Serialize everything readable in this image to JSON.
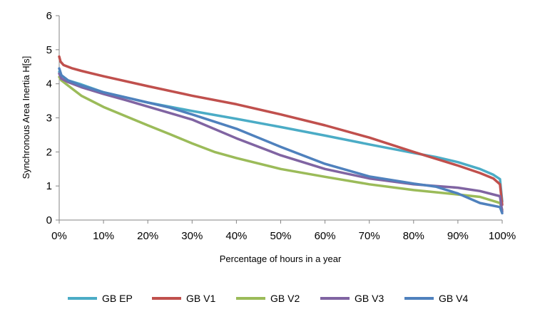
{
  "chart_data": {
    "type": "line",
    "title": "",
    "xlabel": "Percentage of hours  in a year",
    "ylabel": "Synchronous Area Inertia H[s]",
    "xlim": [
      0,
      100
    ],
    "ylim": [
      0,
      6
    ],
    "x_ticks": [
      0,
      10,
      20,
      30,
      40,
      50,
      60,
      70,
      80,
      90,
      100
    ],
    "x_tick_labels": [
      "0%",
      "10%",
      "20%",
      "30%",
      "40%",
      "50%",
      "60%",
      "70%",
      "80%",
      "90%",
      "100%"
    ],
    "y_ticks": [
      0,
      1,
      2,
      3,
      4,
      5,
      6
    ],
    "y_tick_labels": [
      "0",
      "1",
      "2",
      "3",
      "4",
      "5",
      "6"
    ],
    "grid": false,
    "legend_position": "bottom",
    "series": [
      {
        "name": "GB EP",
        "color": "#4BACC6",
        "x": [
          0,
          0.5,
          2,
          5,
          10,
          20,
          30,
          40,
          50,
          60,
          70,
          80,
          85,
          90,
          95,
          98,
          99.5,
          100
        ],
        "y": [
          4.35,
          4.25,
          4.1,
          3.98,
          3.75,
          3.45,
          3.2,
          2.97,
          2.73,
          2.48,
          2.22,
          1.97,
          1.85,
          1.7,
          1.5,
          1.33,
          1.2,
          0.55
        ]
      },
      {
        "name": "GB V1",
        "color": "#C0504D",
        "x": [
          0,
          0.3,
          1,
          3,
          5,
          10,
          20,
          30,
          40,
          50,
          60,
          70,
          80,
          90,
          95,
          98,
          99.5,
          100
        ],
        "y": [
          4.8,
          4.65,
          4.55,
          4.45,
          4.38,
          4.22,
          3.93,
          3.65,
          3.4,
          3.1,
          2.78,
          2.42,
          2.0,
          1.6,
          1.38,
          1.22,
          1.05,
          0.45
        ]
      },
      {
        "name": "GB V2",
        "color": "#9BBB59",
        "x": [
          0,
          0.5,
          2,
          5,
          10,
          15,
          20,
          25,
          30,
          35,
          40,
          50,
          60,
          70,
          80,
          90,
          95,
          99.5,
          100
        ],
        "y": [
          4.2,
          4.1,
          3.95,
          3.65,
          3.32,
          3.05,
          2.78,
          2.52,
          2.25,
          2.0,
          1.82,
          1.5,
          1.27,
          1.05,
          0.88,
          0.75,
          0.68,
          0.5,
          0.3
        ]
      },
      {
        "name": "GB V3",
        "color": "#8064A2",
        "x": [
          0,
          0.5,
          2,
          5,
          10,
          15,
          20,
          30,
          40,
          50,
          60,
          70,
          80,
          85,
          90,
          95,
          99.5,
          100
        ],
        "y": [
          4.3,
          4.15,
          4.05,
          3.9,
          3.7,
          3.52,
          3.33,
          2.95,
          2.4,
          1.9,
          1.5,
          1.22,
          1.05,
          1.0,
          0.95,
          0.85,
          0.7,
          0.25
        ]
      },
      {
        "name": "GB V4",
        "color": "#4F81BD",
        "x": [
          0,
          0.5,
          2,
          5,
          10,
          20,
          25,
          30,
          40,
          50,
          60,
          70,
          80,
          85,
          90,
          95,
          99.5,
          100
        ],
        "y": [
          4.45,
          4.25,
          4.1,
          3.95,
          3.75,
          3.45,
          3.3,
          3.1,
          2.68,
          2.15,
          1.65,
          1.28,
          1.07,
          0.98,
          0.78,
          0.5,
          0.38,
          0.2
        ]
      }
    ]
  }
}
